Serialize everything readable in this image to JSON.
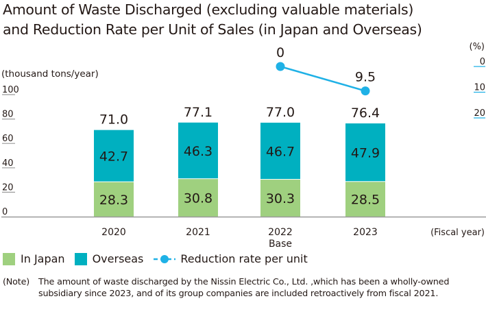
{
  "title_lines": [
    "Amount of Waste Discharged (excluding valuable materials)",
    "and Reduction Rate per Unit of Sales (in Japan and Overseas)"
  ],
  "chart_data": {
    "type": "bar",
    "stacked": true,
    "title": "Amount of Waste Discharged (excluding valuable materials) and Reduction Rate per Unit of Sales (in Japan and Overseas)",
    "categories": [
      "2020",
      "2021",
      "2022",
      "2023"
    ],
    "category_sublabels": [
      "",
      "",
      "Base",
      ""
    ],
    "xlabel": "(Fiscal year)",
    "ylabel": "(thousand tons/year)",
    "ylim": [
      0,
      100
    ],
    "yticks": [
      0,
      20,
      40,
      60,
      80,
      100
    ],
    "y2label": "(%)",
    "y2lim": [
      0,
      20
    ],
    "y2ticks": [
      0,
      10,
      20
    ],
    "y2_inverted": true,
    "series": [
      {
        "name": "In Japan",
        "type": "bar",
        "color": "#9fd07f",
        "values": [
          28.3,
          30.8,
          30.3,
          28.5
        ]
      },
      {
        "name": "Overseas",
        "type": "bar",
        "color": "#00b0c0",
        "values": [
          42.7,
          46.3,
          46.7,
          47.9
        ]
      },
      {
        "name": "Reduction rate per unit",
        "type": "line",
        "axis": "right",
        "color": "#1fb1e6",
        "values": [
          null,
          null,
          0,
          9.5
        ]
      }
    ],
    "totals": [
      71.0,
      77.1,
      77.0,
      76.4
    ],
    "total_labels": [
      "71.0",
      "77.1",
      "77.0",
      "76.4"
    ],
    "bar_labels": {
      "In Japan": [
        "28.3",
        "30.8",
        "30.3",
        "28.5"
      ],
      "Overseas": [
        "42.7",
        "46.3",
        "46.7",
        "47.9"
      ]
    },
    "line_labels": [
      "",
      "",
      "0",
      "9.5"
    ],
    "legend": [
      "In Japan",
      "Overseas",
      "Reduction rate per unit"
    ],
    "legend_position": "bottom-left",
    "grid": false
  },
  "note": {
    "label": "(Note)",
    "text": "The amount of waste discharged by  the Nissin Electric Co., Ltd. ,which has been a wholly-owned subsidiary since 2023, and of its group companies are included retroactively from fiscal 2021."
  },
  "colors": {
    "japan": "#9fd07f",
    "overseas": "#00b0c0",
    "line": "#1fb1e6",
    "axis": "#9a9a9a",
    "text": "#231815"
  }
}
